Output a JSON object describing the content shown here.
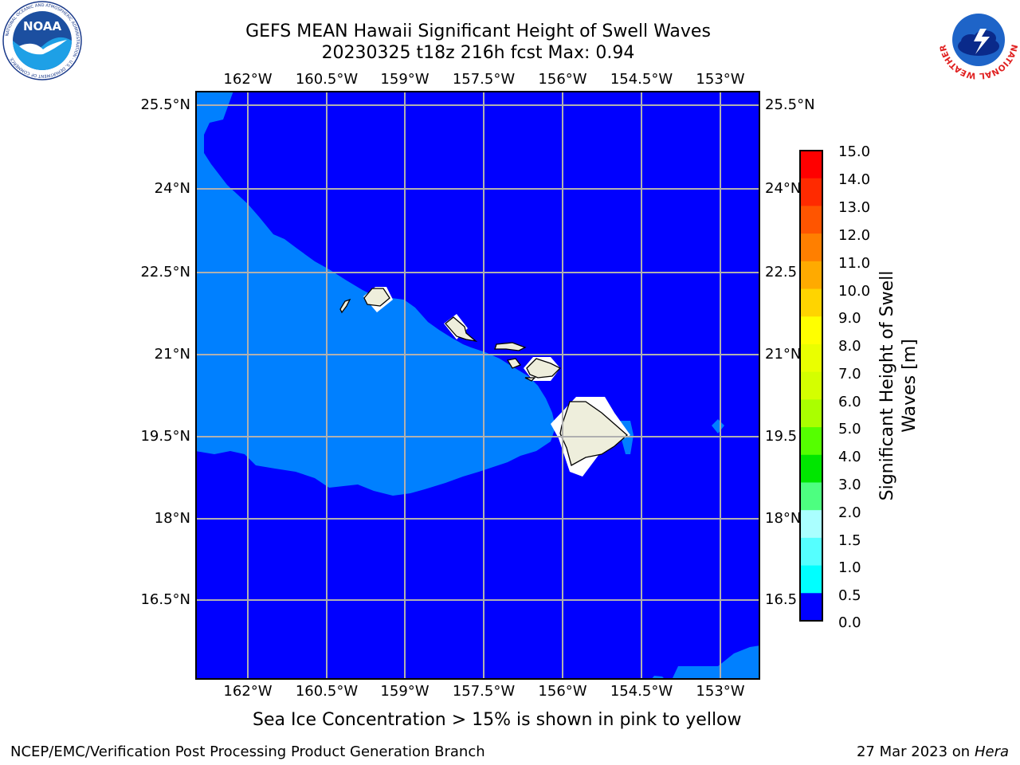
{
  "title": {
    "line1": "GEFS MEAN Hawaii Significant Height of Swell Waves",
    "line2": "20230325 t18z 216h fcst   Max: 0.94"
  },
  "map": {
    "lon_ticks": [
      "162°W",
      "160.5°W",
      "159°W",
      "157.5°W",
      "156°W",
      "154.5°W",
      "153°W"
    ],
    "lat_ticks": [
      "25.5°N",
      "24°N",
      "22.5°N",
      "21°N",
      "19.5°N",
      "18°N",
      "16.5°N"
    ],
    "lat_ticks_right": [
      "25.5°N",
      "24°N",
      "22.5",
      "21°N",
      "19.5",
      "18°N",
      "16.5"
    ],
    "colors": {
      "ocean_low": "#0000ff",
      "ocean_mid": "#0080ff",
      "land": "#eeeedc",
      "grid": "#b0b0b0"
    }
  },
  "colorbar": {
    "title_line1": "Significant Height of Swell",
    "title_line2": "Waves [m]",
    "labels": [
      "15.0",
      "14.0",
      "13.0",
      "12.0",
      "11.0",
      "10.0",
      "9.0",
      "8.0",
      "7.0",
      "6.0",
      "5.0",
      "4.0",
      "3.0",
      "2.0",
      "1.5",
      "1.0",
      "0.5",
      "0.0"
    ],
    "colors_top_to_bottom": [
      "#ff0000",
      "#ff2a00",
      "#ff5500",
      "#ff7f00",
      "#ffaa00",
      "#ffd400",
      "#ffff00",
      "#eaff00",
      "#d4ff00",
      "#aaff00",
      "#55ff00",
      "#00e600",
      "#4dff80",
      "#aaffff",
      "#55ffff",
      "#00ffff",
      "#0080ff",
      "#0000ff"
    ]
  },
  "caption": "Sea Ice Concentration > 15% is shown in pink to yellow",
  "footer": {
    "left": "NCEP/EMC/Verification Post Processing Product Generation Branch",
    "right_date": "27 Mar 2023 on",
    "right_host": "Hera"
  },
  "logos": {
    "noaa_text": "NOAA",
    "noaa_ring_text": "NATIONAL OCEANIC AND ATMOSPHERIC ADMINISTRATION · U.S. DEPARTMENT OF COMMERCE",
    "nws_ring_text": "NATIONAL WEATHER SERVICE"
  }
}
